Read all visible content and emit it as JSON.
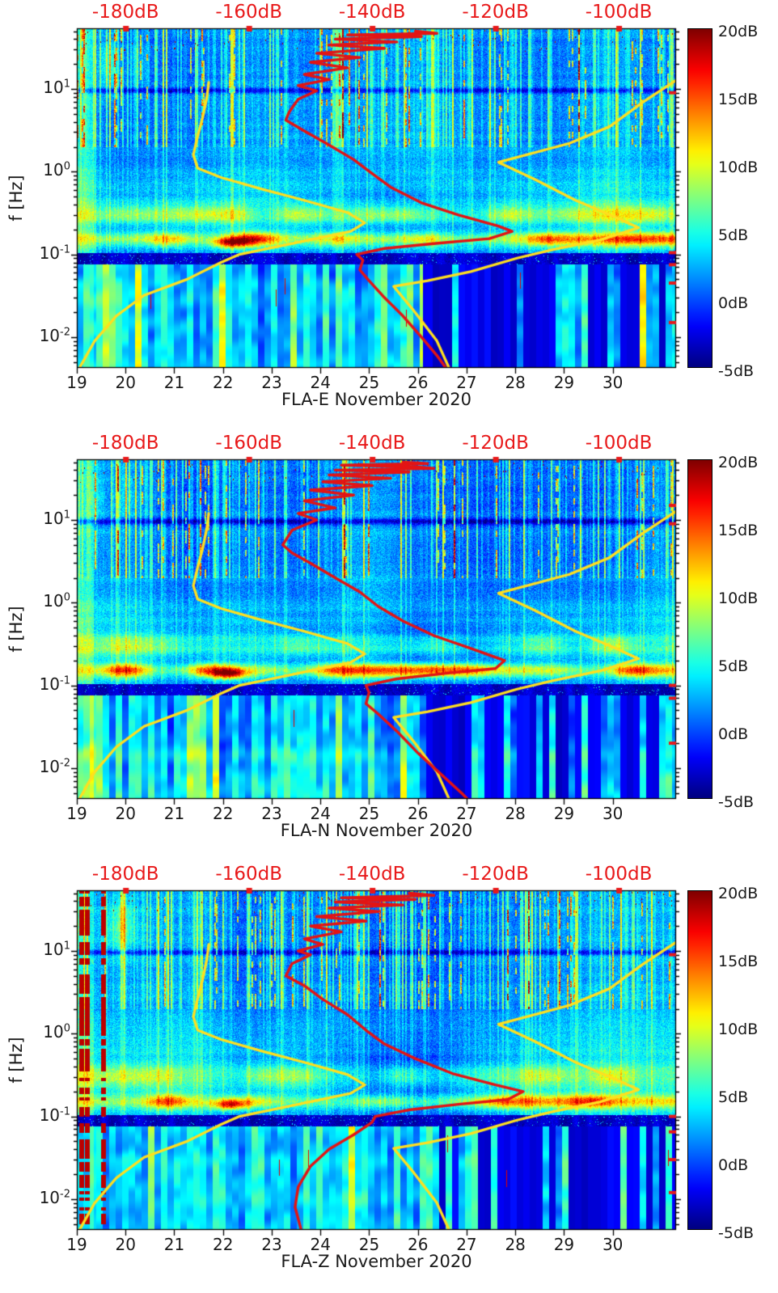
{
  "figure": {
    "background": "#ffffff",
    "text_color": "#1a1a1a"
  },
  "chart_data": {
    "type": "heatmap",
    "description": "Three stacked seismic spectrogram panels (components E, N, Z of station FLA, November 2020). Each panel shows relative power (dB, jet colormap, -5 to 20 dB) versus day of month (x) and frequency in Hz (y, log scale). Yellow overlays are the Peterson low/high noise model curves and the red overlay is the station median PSD, both plotted against the red top axis in dB.",
    "x": {
      "range_days": [
        19,
        31.3
      ],
      "tick_values": [
        19,
        20,
        21,
        22,
        23,
        24,
        25,
        26,
        27,
        28,
        29,
        30
      ],
      "tick_labels": [
        "19",
        "20",
        "21",
        "22",
        "23",
        "24",
        "25",
        "26",
        "27",
        "28",
        "29",
        "30"
      ]
    },
    "y": {
      "label": "f [Hz]",
      "scale": "log",
      "range_hz": [
        0.00424,
        54.1
      ],
      "ticks": [
        {
          "base": "10",
          "exp": "1",
          "value": 1
        },
        {
          "base": "10",
          "exp": "0",
          "value": 0
        },
        {
          "base": "10",
          "exp": "-1",
          "value": -1
        },
        {
          "base": "10",
          "exp": "-2",
          "value": -2
        }
      ]
    },
    "colorbar": {
      "colormap": "jet",
      "range_db": [
        -5,
        20
      ],
      "tick_values": [
        20,
        15,
        10,
        5,
        0,
        -5
      ],
      "tick_labels": [
        "20dB",
        "15dB",
        "10dB",
        "5dB",
        "0dB",
        "-5dB"
      ]
    },
    "top_axis": {
      "db_range": [
        -187.9,
        -90.7
      ],
      "tick_values": [
        -180,
        -160,
        -140,
        -120,
        -100
      ],
      "tick_labels": [
        "-180dB",
        "-160dB",
        "-140dB",
        "-120dB",
        "-100dB"
      ],
      "color": "#e8191a"
    },
    "median_color": "#e31414",
    "noise_models": {
      "color": "#ffdf1f",
      "low": {
        "name": "low-noise-model",
        "points_db_hz": [
          [
            -187.5,
            0.0042
          ],
          [
            -185,
            0.009
          ],
          [
            -181.5,
            0.018
          ],
          [
            -177,
            0.032
          ],
          [
            -170,
            0.05
          ],
          [
            -164.5,
            0.08
          ],
          [
            -161.5,
            0.1
          ],
          [
            -152,
            0.14
          ],
          [
            -143.5,
            0.19
          ],
          [
            -141.2,
            0.24
          ],
          [
            -144,
            0.32
          ],
          [
            -151,
            0.45
          ],
          [
            -158,
            0.62
          ],
          [
            -164.5,
            0.85
          ],
          [
            -168.3,
            1.1
          ],
          [
            -169,
            1.6
          ],
          [
            -168.4,
            2.5
          ],
          [
            -167.5,
            4.5
          ],
          [
            -166.8,
            8
          ],
          [
            -166.5,
            12
          ]
        ]
      },
      "high": {
        "name": "high-noise-model",
        "points_db_hz": [
          [
            -90.5,
            13
          ],
          [
            -96,
            7
          ],
          [
            -101.5,
            3.5
          ],
          [
            -108,
            2.2
          ],
          [
            -119.5,
            1.3
          ],
          [
            -113.5,
            0.8
          ],
          [
            -107,
            0.45
          ],
          [
            -100.5,
            0.28
          ],
          [
            -96.8,
            0.21
          ],
          [
            -103,
            0.15
          ],
          [
            -110.5,
            0.115
          ],
          [
            -116.5,
            0.09
          ],
          [
            -124,
            0.062
          ],
          [
            -131,
            0.048
          ],
          [
            -136.5,
            0.041
          ],
          [
            -133.5,
            0.022
          ],
          [
            -129.5,
            0.009
          ],
          [
            -127.5,
            0.0042
          ]
        ]
      }
    },
    "panels": [
      {
        "component": "E",
        "title": "FLA-E November 2020",
        "render_seed": 3,
        "red_dash_col_threshold": 0.995,
        "artifact_red_columns_days": [],
        "right_edge_marks_hz": [
          9,
          0.105,
          0.075,
          0.045,
          0.015
        ],
        "median_psd_db_hz": [
          [
            -133,
            50
          ],
          [
            -129.5,
            47
          ],
          [
            -144,
            45
          ],
          [
            -132,
            43
          ],
          [
            -146,
            40
          ],
          [
            -136,
            37
          ],
          [
            -147,
            34
          ],
          [
            -138,
            31
          ],
          [
            -149,
            27
          ],
          [
            -142,
            24
          ],
          [
            -150,
            21
          ],
          [
            -144,
            18
          ],
          [
            -151,
            15
          ],
          [
            -147,
            13
          ],
          [
            -152,
            11
          ],
          [
            -149,
            9.5
          ],
          [
            -152,
            7.5
          ],
          [
            -153.5,
            5.2
          ],
          [
            -154,
            4.2
          ],
          [
            -151,
            3.1
          ],
          [
            -147,
            2.1
          ],
          [
            -143,
            1.4
          ],
          [
            -140,
            0.95
          ],
          [
            -137,
            0.65
          ],
          [
            -132,
            0.42
          ],
          [
            -126,
            0.3
          ],
          [
            -119.5,
            0.22
          ],
          [
            -117.3,
            0.19
          ],
          [
            -121,
            0.155
          ],
          [
            -130,
            0.135
          ],
          [
            -138,
            0.118
          ],
          [
            -142.5,
            0.1
          ],
          [
            -141.5,
            0.085
          ],
          [
            -142,
            0.065
          ],
          [
            -140.5,
            0.048
          ],
          [
            -138,
            0.03
          ],
          [
            -135,
            0.018
          ],
          [
            -132,
            0.01
          ],
          [
            -129.5,
            0.006
          ],
          [
            -128,
            0.0042
          ]
        ]
      },
      {
        "component": "N",
        "title": "FLA-N November 2020",
        "render_seed": 7,
        "red_dash_col_threshold": 0.998,
        "artifact_red_columns_days": [],
        "right_edge_marks_hz": [
          15,
          9,
          0.1,
          0.07,
          0.02
        ],
        "median_psd_db_hz": [
          [
            -135,
            50
          ],
          [
            -131,
            48
          ],
          [
            -145,
            46
          ],
          [
            -133,
            44
          ],
          [
            -130,
            42
          ],
          [
            -146,
            40
          ],
          [
            -134,
            38
          ],
          [
            -147,
            35
          ],
          [
            -137,
            32
          ],
          [
            -148,
            29
          ],
          [
            -140,
            26
          ],
          [
            -150,
            23
          ],
          [
            -143,
            20
          ],
          [
            -151,
            17
          ],
          [
            -146,
            14
          ],
          [
            -152,
            12
          ],
          [
            -149,
            10
          ],
          [
            -153,
            7.5
          ],
          [
            -154.5,
            5
          ],
          [
            -153,
            4
          ],
          [
            -150,
            3
          ],
          [
            -146,
            2
          ],
          [
            -142,
            1.35
          ],
          [
            -139,
            0.9
          ],
          [
            -135,
            0.6
          ],
          [
            -130,
            0.4
          ],
          [
            -124,
            0.28
          ],
          [
            -118.5,
            0.2
          ],
          [
            -120,
            0.16
          ],
          [
            -128,
            0.14
          ],
          [
            -136,
            0.12
          ],
          [
            -141,
            0.1
          ],
          [
            -140.5,
            0.082
          ],
          [
            -141,
            0.06
          ],
          [
            -139,
            0.045
          ],
          [
            -136,
            0.028
          ],
          [
            -132.5,
            0.015
          ],
          [
            -128.5,
            0.008
          ],
          [
            -125.5,
            0.005
          ],
          [
            -124.5,
            0.0042
          ]
        ]
      },
      {
        "component": "Z",
        "title": "FLA-Z November 2020",
        "render_seed": 11,
        "red_dash_col_threshold": 0.985,
        "artifact_red_columns_days": [
          19.1,
          19.22,
          19.55
        ],
        "right_edge_marks_hz": [
          9,
          0.1,
          0.065,
          0.03,
          0.012
        ],
        "median_psd_db_hz": [
          [
            -134,
            50
          ],
          [
            -130,
            47
          ],
          [
            -145,
            44
          ],
          [
            -133,
            42
          ],
          [
            -146,
            39
          ],
          [
            -135,
            36
          ],
          [
            -147,
            33
          ],
          [
            -139,
            30
          ],
          [
            -149,
            26
          ],
          [
            -141,
            23
          ],
          [
            -150,
            20
          ],
          [
            -145,
            17
          ],
          [
            -151,
            14
          ],
          [
            -148,
            12
          ],
          [
            -152,
            10
          ],
          [
            -150,
            9
          ],
          [
            -153,
            7
          ],
          [
            -154,
            5
          ],
          [
            -151,
            3.8
          ],
          [
            -148,
            2.6
          ],
          [
            -144,
            1.7
          ],
          [
            -141,
            1.1
          ],
          [
            -138,
            0.75
          ],
          [
            -133,
            0.5
          ],
          [
            -127,
            0.33
          ],
          [
            -120,
            0.24
          ],
          [
            -115.5,
            0.2
          ],
          [
            -118,
            0.16
          ],
          [
            -126,
            0.14
          ],
          [
            -134,
            0.12
          ],
          [
            -139.5,
            0.1
          ],
          [
            -140,
            0.085
          ],
          [
            -143,
            0.06
          ],
          [
            -147,
            0.04
          ],
          [
            -150,
            0.025
          ],
          [
            -152,
            0.014
          ],
          [
            -152.5,
            0.008
          ],
          [
            -151.5,
            0.0042
          ]
        ]
      }
    ]
  }
}
